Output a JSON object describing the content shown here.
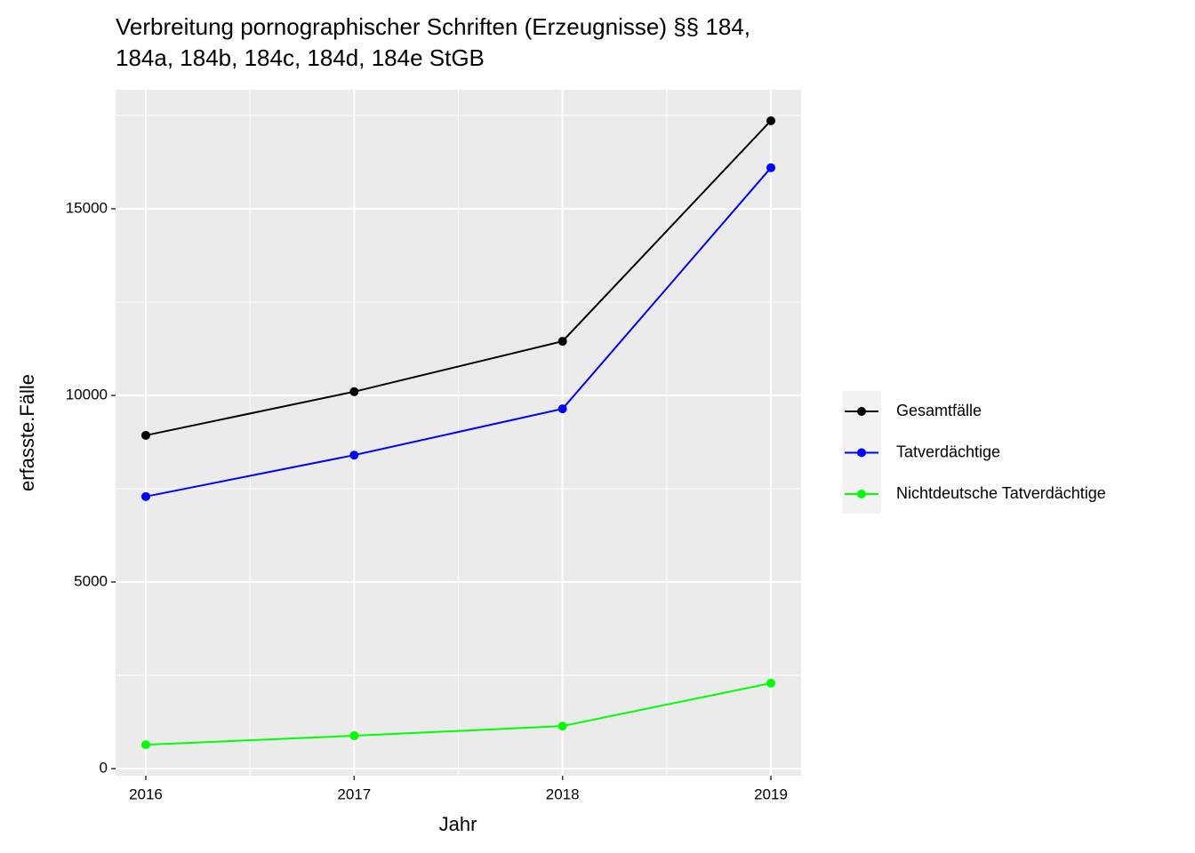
{
  "chart_data": {
    "type": "line",
    "title": [
      "Verbreitung pornographischer Schriften (Erzeugnisse) §§ 184,",
      "184a, 184b, 184c, 184d, 184e StGB"
    ],
    "x_label": "Jahr",
    "y_label": "erfasste.Fälle",
    "x": [
      2016,
      2017,
      2018,
      2019
    ],
    "series": [
      {
        "name": "Gesamtfälle",
        "color": "#000000",
        "values": [
          8930,
          10100,
          11450,
          17360
        ]
      },
      {
        "name": "Tatverdächtige",
        "color": "#0000ff",
        "values": [
          7290,
          8400,
          9640,
          16100
        ]
      },
      {
        "name": "Nichtdeutsche Tatverdächtige",
        "color": "#00ff00",
        "values": [
          640,
          880,
          1140,
          2290
        ]
      }
    ],
    "xlim": [
      2015.855,
      2019.145
    ],
    "xticks": [
      2016,
      2017,
      2018,
      2019
    ],
    "ylim": [
      -190,
      18190
    ],
    "yticks": [
      0,
      5000,
      10000,
      15000
    ],
    "grid": true
  }
}
